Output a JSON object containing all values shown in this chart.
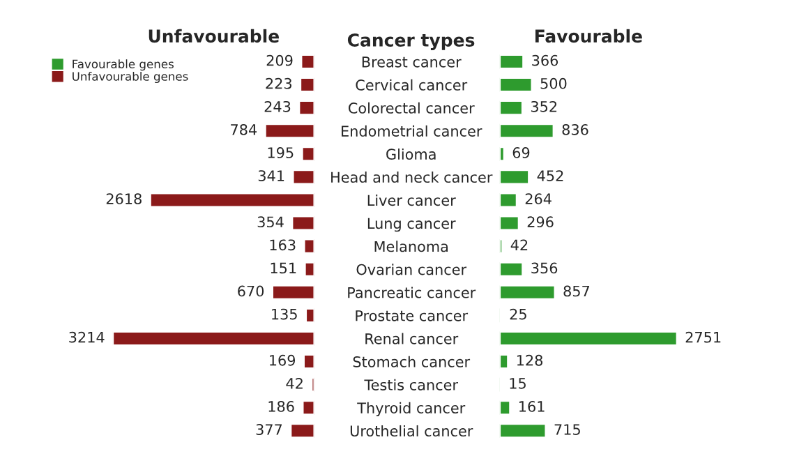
{
  "chart_data": [
    {
      "type": "bar",
      "orientation": "horizontal",
      "title": "Unfavourable",
      "ylabel": "Cancer types",
      "categories": [
        "Breast cancer",
        "Cervical cancer",
        "Colorectal cancer",
        "Endometrial cancer",
        "Glioma",
        "Head and neck cancer",
        "Liver cancer",
        "Lung cancer",
        "Melanoma",
        "Ovarian cancer",
        "Pancreatic cancer",
        "Prostate cancer",
        "Renal cancer",
        "Stomach cancer",
        "Testis cancer",
        "Thyroid cancer",
        "Urothelial cancer"
      ],
      "series": [
        {
          "name": "Unfavourable genes",
          "color": "#8b1a1a",
          "values": [
            209,
            223,
            243,
            784,
            195,
            341,
            2618,
            354,
            163,
            151,
            670,
            135,
            3214,
            169,
            42,
            186,
            377
          ]
        }
      ],
      "xlim": [
        3214,
        0
      ],
      "data_labels": true,
      "tick_labels": "y",
      "legend": "top left",
      "grid": false
    },
    {
      "type": "bar",
      "orientation": "horizontal",
      "title": "Favourable",
      "series": [
        {
          "name": "Favourable genes",
          "color": "#2e9b2e",
          "values": [
            366,
            500,
            352,
            836,
            69,
            452,
            264,
            296,
            42,
            356,
            857,
            25,
            2751,
            128,
            15,
            161,
            715
          ]
        }
      ],
      "xlim": [
        0,
        2751
      ],
      "data_labels": true,
      "tick_labels": false,
      "legend": "top left",
      "grid": false
    }
  ]
}
